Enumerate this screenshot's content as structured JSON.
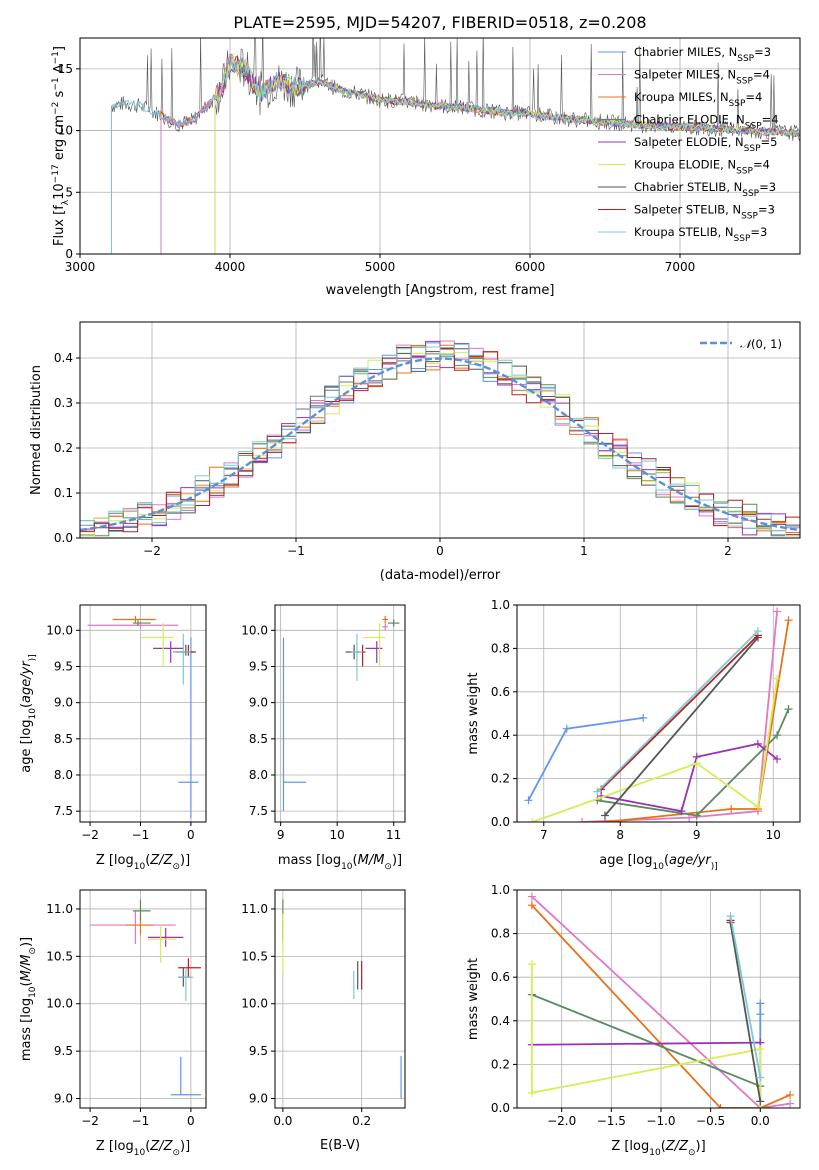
{
  "title": "PLATE=2595, MJD=54207, FIBERID=0518, z=0.208",
  "colors": {
    "Chabrier MILES": "#6495ed",
    "Salpeter MILES": "#e377c2",
    "Kroupa MILES": "#e8721c",
    "Chabrier ELODIE": "#5a8a5f",
    "Salpeter ELODIE": "#9b30b5",
    "Kroupa ELODIE": "#d4ee55",
    "Chabrier STELIB": "#555555",
    "Salpeter STELIB": "#b22222",
    "Kroupa STELIB": "#7ec8d8"
  },
  "chart_data": [
    {
      "type": "line",
      "panel": "spectrum",
      "title": "PLATE=2595, MJD=54207, FIBERID=0518, z=0.208",
      "xlabel": "wavelength [Angstrom, rest frame]",
      "ylabel_parts": [
        "Flux [f",
        "λ",
        "10",
        "−17",
        " erg cm",
        "−2",
        " s",
        "−1",
        " A",
        "−1",
        "]"
      ],
      "xlim": [
        3000,
        7800
      ],
      "ylim": [
        0,
        17.5
      ],
      "xticks": [
        3000,
        4000,
        5000,
        6000,
        7000
      ],
      "yticks": [
        0,
        5,
        10,
        15
      ],
      "legend_position": "upper right",
      "continuum_x": [
        3200,
        3300,
        3400,
        3550,
        3650,
        3750,
        3850,
        3950,
        4000,
        4100,
        4200,
        4300,
        4450,
        4600,
        4750,
        4850,
        5000,
        5200,
        5400,
        5600,
        5800,
        6000,
        6200,
        6400,
        6600,
        6800,
        7000,
        7200,
        7400,
        7600,
        7800
      ],
      "continuum_y": [
        12.0,
        12.2,
        12.0,
        11.2,
        10.5,
        10.8,
        12.0,
        13.5,
        15.5,
        15.0,
        13.0,
        14.0,
        13.5,
        14.0,
        13.2,
        13.0,
        12.5,
        12.3,
        12.0,
        11.8,
        11.5,
        11.4,
        11.0,
        10.8,
        10.6,
        10.4,
        10.3,
        10.2,
        10.0,
        9.9,
        9.8
      ],
      "series": [
        {
          "name": "Chabrier MILES",
          "nssp": "3",
          "start": 3540
        },
        {
          "name": "Salpeter MILES",
          "nssp": "4",
          "start": 3540
        },
        {
          "name": "Kroupa MILES",
          "nssp": "4",
          "start": 3540
        },
        {
          "name": "Chabrier ELODIE",
          "nssp": "4",
          "start": 3900
        },
        {
          "name": "Salpeter ELODIE",
          "nssp": "5",
          "start": 3900
        },
        {
          "name": "Kroupa ELODIE",
          "nssp": "4",
          "start": 3900
        },
        {
          "name": "Chabrier STELIB",
          "nssp": "3",
          "start": 3210
        },
        {
          "name": "Salpeter STELIB",
          "nssp": "3",
          "start": 3540
        },
        {
          "name": "Kroupa STELIB",
          "nssp": "3",
          "start": 3210
        }
      ]
    },
    {
      "type": "histogram",
      "panel": "residuals",
      "xlabel": "(data-model)/error",
      "ylabel": "Normed distribution",
      "xlim": [
        -2.5,
        2.5
      ],
      "ylim": [
        0,
        0.48
      ],
      "xticks": [
        -2,
        -1,
        0,
        1,
        2
      ],
      "yticks": [
        0.0,
        0.1,
        0.2,
        0.3,
        0.4
      ],
      "legend_entries": [
        {
          "label_main": "𝒩",
          "label_rest": "(0, 1)"
        }
      ],
      "bin_width": 0.1,
      "x_start": -2.5,
      "gaussian": {
        "mu": 0,
        "sigma": 1,
        "color": "#5b8fd9"
      }
    },
    {
      "type": "scatter",
      "panel": "age-vs-Z",
      "xlabel_parts": [
        "Z [log",
        "10",
        "(",
        "Z/Z",
        "⊙",
        ")]"
      ],
      "ylabel_parts": [
        "age  [log",
        "10",
        "(",
        "age/yr",
        ")]"
      ],
      "xlim": [
        -2.2,
        0.3
      ],
      "ylim": [
        7.35,
        10.35
      ],
      "xticks": [
        -2,
        -1,
        0
      ],
      "yticks": [
        7.5,
        8.0,
        8.5,
        9.0,
        9.5,
        10.0
      ],
      "points": [
        {
          "name": "Chabrier MILES",
          "x": 0.0,
          "y": 7.9,
          "x_err": [
            0.25,
            0.15
          ],
          "y_err": [
            0.5,
            2.0
          ]
        },
        {
          "name": "Salpeter MILES",
          "x": -1.0,
          "y": 10.07,
          "x_err": [
            1.05,
            0.75
          ],
          "y_err": [
            0.05,
            0.05
          ]
        },
        {
          "name": "Kroupa MILES",
          "x": -1.1,
          "y": 10.15,
          "x_err": [
            0.45,
            0.4
          ],
          "y_err": [
            0.05,
            0.05
          ]
        },
        {
          "name": "Chabrier ELODIE",
          "x": -1.05,
          "y": 10.1,
          "x_err": [
            0.1,
            0.25
          ],
          "y_err": [
            0.04,
            0.04
          ]
        },
        {
          "name": "Salpeter ELODIE",
          "x": -0.4,
          "y": 9.75,
          "x_err": [
            0.35,
            0.25
          ],
          "y_err": [
            0.2,
            0.1
          ]
        },
        {
          "name": "Kroupa ELODIE",
          "x": -0.55,
          "y": 9.9,
          "x_err": [
            0.45,
            0.2
          ],
          "y_err": [
            0.4,
            0.2
          ]
        },
        {
          "name": "Chabrier STELIB",
          "x": -0.1,
          "y": 9.7,
          "x_err": [
            0.25,
            0.15
          ],
          "y_err": [
            0.05,
            0.1
          ]
        },
        {
          "name": "Salpeter STELIB",
          "x": -0.05,
          "y": 9.7,
          "x_err": [
            0.25,
            0.15
          ],
          "y_err": [
            0.05,
            0.1
          ]
        },
        {
          "name": "Kroupa STELIB",
          "x": -0.15,
          "y": 9.7,
          "x_err": [
            0.2,
            0.15
          ],
          "y_err": [
            0.45,
            0.25
          ]
        }
      ]
    },
    {
      "type": "scatter",
      "panel": "age-vs-mass",
      "xlabel_parts": [
        "mass [log",
        "10",
        "(",
        "M/M",
        "⊙",
        ")]"
      ],
      "xlim": [
        8.9,
        11.2
      ],
      "ylim": [
        7.35,
        10.35
      ],
      "xticks": [
        9,
        10,
        11
      ],
      "yticks": [
        7.5,
        8.0,
        8.5,
        9.0,
        9.5,
        10.0
      ],
      "points": [
        {
          "name": "Chabrier MILES",
          "x": 9.05,
          "y": 7.9,
          "x_err": [
            0.0,
            0.4
          ],
          "y_err": [
            0.4,
            2.0
          ]
        },
        {
          "name": "Salpeter MILES",
          "x": 10.85,
          "y": 10.05,
          "x_err": [
            0.05,
            0.05
          ],
          "y_err": [
            0.05,
            0.05
          ]
        },
        {
          "name": "Kroupa MILES",
          "x": 10.85,
          "y": 10.15,
          "x_err": [
            0.05,
            0.05
          ],
          "y_err": [
            0.05,
            0.05
          ]
        },
        {
          "name": "Chabrier ELODIE",
          "x": 11.0,
          "y": 10.1,
          "x_err": [
            0.1,
            0.1
          ],
          "y_err": [
            0.05,
            0.05
          ]
        },
        {
          "name": "Salpeter ELODIE",
          "x": 10.7,
          "y": 9.75,
          "x_err": [
            0.2,
            0.1
          ],
          "y_err": [
            0.2,
            0.1
          ]
        },
        {
          "name": "Kroupa ELODIE",
          "x": 10.75,
          "y": 9.9,
          "x_err": [
            0.3,
            0.1
          ],
          "y_err": [
            0.4,
            0.2
          ]
        },
        {
          "name": "Chabrier STELIB",
          "x": 10.3,
          "y": 9.7,
          "x_err": [
            0.15,
            0.1
          ],
          "y_err": [
            0.1,
            0.1
          ]
        },
        {
          "name": "Salpeter STELIB",
          "x": 10.45,
          "y": 9.7,
          "x_err": [
            0.1,
            0.05
          ],
          "y_err": [
            0.2,
            0.1
          ]
        },
        {
          "name": "Kroupa STELIB",
          "x": 10.35,
          "y": 9.7,
          "x_err": [
            0.1,
            0.1
          ],
          "y_err": [
            0.4,
            0.25
          ]
        }
      ]
    },
    {
      "type": "line",
      "panel": "weight-vs-age",
      "xlabel_parts": [
        "age  [log",
        "10",
        "(",
        "age/yr",
        ")]"
      ],
      "ylabel": "mass weight",
      "xlim": [
        6.65,
        10.35
      ],
      "ylim": [
        0,
        1
      ],
      "xticks": [
        7,
        8,
        9,
        10
      ],
      "yticks": [
        0.0,
        0.2,
        0.4,
        0.6,
        0.8,
        1.0
      ],
      "series": [
        {
          "name": "Chabrier MILES",
          "x": [
            6.8,
            7.3,
            8.3
          ],
          "y": [
            0.1,
            0.43,
            0.48
          ]
        },
        {
          "name": "Salpeter MILES",
          "x": [
            7.5,
            8.9,
            9.8,
            10.05
          ],
          "y": [
            0.0,
            0.02,
            0.05,
            0.97
          ]
        },
        {
          "name": "Kroupa MILES",
          "x": [
            7.8,
            9.45,
            9.8,
            10.2
          ],
          "y": [
            0.0,
            0.06,
            0.06,
            0.93
          ]
        },
        {
          "name": "Chabrier ELODIE",
          "x": [
            7.7,
            9.0,
            10.05,
            10.2
          ],
          "y": [
            0.1,
            0.03,
            0.4,
            0.52
          ]
        },
        {
          "name": "Salpeter ELODIE",
          "x": [
            7.75,
            8.8,
            9.0,
            9.8,
            10.05
          ],
          "y": [
            0.12,
            0.05,
            0.3,
            0.36,
            0.29
          ]
        },
        {
          "name": "Kroupa ELODIE",
          "x": [
            6.85,
            9.0,
            9.8,
            10.05
          ],
          "y": [
            0.0,
            0.27,
            0.07,
            0.66
          ]
        },
        {
          "name": "Chabrier STELIB",
          "x": [
            7.8,
            9.8
          ],
          "y": [
            0.03,
            0.85
          ]
        },
        {
          "name": "Salpeter STELIB",
          "x": [
            7.75,
            9.8
          ],
          "y": [
            0.15,
            0.86
          ]
        },
        {
          "name": "Kroupa STELIB",
          "x": [
            7.7,
            9.8
          ],
          "y": [
            0.14,
            0.88
          ]
        }
      ]
    },
    {
      "type": "scatter",
      "panel": "mass-vs-Z",
      "xlabel_parts": [
        "Z [log",
        "10",
        "(",
        "Z/Z",
        "⊙",
        ")]"
      ],
      "ylabel_parts": [
        "mass [log",
        "10",
        "(",
        "M/M",
        "⊙",
        ")]"
      ],
      "xlim": [
        -2.2,
        0.3
      ],
      "ylim": [
        8.9,
        11.2
      ],
      "xticks": [
        -2,
        -1,
        0
      ],
      "yticks": [
        9.0,
        9.5,
        10.0,
        10.5,
        11.0
      ],
      "points": [
        {
          "name": "Chabrier MILES",
          "x": -0.2,
          "y": 9.04,
          "x_err": [
            0.2,
            0.4
          ],
          "y_err": [
            0.0,
            0.4
          ]
        },
        {
          "name": "Salpeter MILES",
          "x": -1.1,
          "y": 10.83,
          "x_err": [
            0.9,
            0.8
          ],
          "y_err": [
            0.2,
            0.15
          ]
        },
        {
          "name": "Kroupa MILES",
          "x": -1.0,
          "y": 10.83,
          "x_err": [
            0.3,
            0.25
          ],
          "y_err": [
            0.1,
            0.1
          ]
        },
        {
          "name": "Chabrier ELODIE",
          "x": -1.0,
          "y": 10.98,
          "x_err": [
            0.15,
            0.2
          ],
          "y_err": [
            0.1,
            0.12
          ]
        },
        {
          "name": "Salpeter ELODIE",
          "x": -0.5,
          "y": 10.7,
          "x_err": [
            0.35,
            0.35
          ],
          "y_err": [
            0.1,
            0.1
          ]
        },
        {
          "name": "Kroupa ELODIE",
          "x": -0.6,
          "y": 10.68,
          "x_err": [
            0.25,
            0.3
          ],
          "y_err": [
            0.25,
            0.15
          ]
        },
        {
          "name": "Chabrier STELIB",
          "x": -0.15,
          "y": 10.28,
          "x_err": [
            0.1,
            0.15
          ],
          "y_err": [
            0.1,
            0.1
          ]
        },
        {
          "name": "Salpeter STELIB",
          "x": -0.05,
          "y": 10.38,
          "x_err": [
            0.2,
            0.25
          ],
          "y_err": [
            0.1,
            0.1
          ]
        },
        {
          "name": "Kroupa STELIB",
          "x": -0.1,
          "y": 10.28,
          "x_err": [
            0.15,
            0.15
          ],
          "y_err": [
            0.25,
            0.1
          ]
        }
      ]
    },
    {
      "type": "scatter",
      "panel": "mass-vs-EBV",
      "xlabel": "E(B-V)",
      "xlim": [
        -0.02,
        0.31
      ],
      "ylim": [
        8.9,
        11.2
      ],
      "xticks": [
        0.0,
        0.2
      ],
      "yticks": [
        9.0,
        9.5,
        10.0,
        10.5,
        11.0
      ],
      "points": [
        {
          "name": "Chabrier MILES",
          "x": 0.3,
          "y": 9.2,
          "x_err": [
            0,
            0
          ],
          "y_err": [
            0.2,
            0.25
          ]
        },
        {
          "name": "Salpeter MILES",
          "x": 0.0,
          "y": 10.8,
          "x_err": [
            0,
            0
          ],
          "y_err": [
            0.1,
            0.1
          ]
        },
        {
          "name": "Kroupa MILES",
          "x": 0.0,
          "y": 10.8,
          "x_err": [
            0,
            0
          ],
          "y_err": [
            0.05,
            0.05
          ]
        },
        {
          "name": "Chabrier ELODIE",
          "x": 0.0,
          "y": 10.95,
          "x_err": [
            0,
            0
          ],
          "y_err": [
            0.15,
            0.15
          ]
        },
        {
          "name": "Salpeter ELODIE",
          "x": 0.0,
          "y": 10.7,
          "x_err": [
            0,
            0
          ],
          "y_err": [
            0.05,
            0.05
          ]
        },
        {
          "name": "Kroupa ELODIE",
          "x": 0.0,
          "y": 10.6,
          "x_err": [
            0,
            0
          ],
          "y_err": [
            0.25,
            0.35
          ]
        },
        {
          "name": "Chabrier STELIB",
          "x": 0.19,
          "y": 10.3,
          "x_err": [
            0,
            0
          ],
          "y_err": [
            0.15,
            0.15
          ]
        },
        {
          "name": "Salpeter STELIB",
          "x": 0.2,
          "y": 10.3,
          "x_err": [
            0,
            0
          ],
          "y_err": [
            0.15,
            0.15
          ]
        },
        {
          "name": "Kroupa STELIB",
          "x": 0.18,
          "y": 10.2,
          "x_err": [
            0,
            0
          ],
          "y_err": [
            0.15,
            0.15
          ]
        }
      ]
    },
    {
      "type": "line",
      "panel": "weight-vs-Z",
      "xlabel_parts": [
        "Z [log",
        "10",
        "(",
        "Z/Z",
        "⊙",
        ")]"
      ],
      "ylabel": "mass weight",
      "xlim": [
        -2.45,
        0.4
      ],
      "ylim": [
        0,
        1
      ],
      "xticks": [
        -2.0,
        -1.5,
        -1.0,
        -0.5,
        0.0
      ],
      "xtick_labels": [
        "−2.0",
        "−1.5",
        "−1.0",
        "−0.5",
        "0.0"
      ],
      "yticks": [
        0.0,
        0.2,
        0.4,
        0.6,
        0.8,
        1.0
      ],
      "series": [
        {
          "name": "Chabrier MILES",
          "x": [
            0.0,
            0.0,
            0.0
          ],
          "y": [
            0.48,
            0.43,
            0.1
          ]
        },
        {
          "name": "Salpeter MILES",
          "x": [
            -2.3,
            0.0,
            0.3
          ],
          "y": [
            0.97,
            0.0,
            0.02
          ]
        },
        {
          "name": "Kroupa MILES",
          "x": [
            -2.3,
            -0.4,
            0.0,
            0.3
          ],
          "y": [
            0.93,
            0.0,
            0.0,
            0.06
          ]
        },
        {
          "name": "Chabrier ELODIE",
          "x": [
            -2.3,
            0.0,
            0.0
          ],
          "y": [
            0.52,
            0.1,
            0.03
          ]
        },
        {
          "name": "Salpeter ELODIE",
          "x": [
            -2.3,
            0.0
          ],
          "y": [
            0.29,
            0.3
          ]
        },
        {
          "name": "Kroupa ELODIE",
          "x": [
            -2.3,
            -2.3,
            0.0,
            0.0
          ],
          "y": [
            0.66,
            0.07,
            0.27,
            0.0
          ]
        },
        {
          "name": "Chabrier STELIB",
          "x": [
            -0.3,
            0.0
          ],
          "y": [
            0.85,
            0.03
          ]
        },
        {
          "name": "Salpeter STELIB",
          "x": [
            -0.3,
            -0.3
          ],
          "y": [
            0.86,
            0.86
          ]
        },
        {
          "name": "Kroupa STELIB",
          "x": [
            -0.3,
            0.0
          ],
          "y": [
            0.88,
            0.14
          ]
        }
      ]
    }
  ]
}
